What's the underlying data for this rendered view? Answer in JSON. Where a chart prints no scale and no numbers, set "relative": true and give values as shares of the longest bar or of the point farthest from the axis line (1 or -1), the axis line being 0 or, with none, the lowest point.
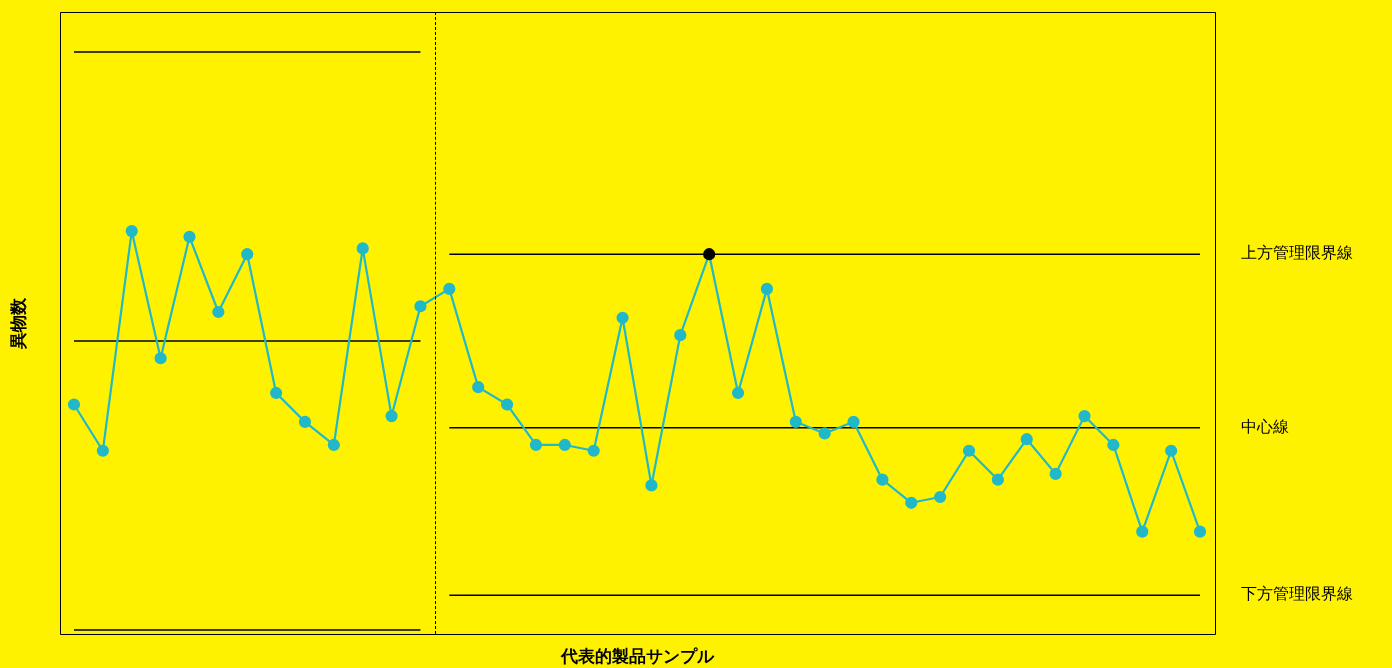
{
  "chart_data": {
    "type": "line",
    "relative": true,
    "xlabel": "代表的製品サンプル",
    "ylabel": "異物数",
    "marker": "circle",
    "line_style": "solid",
    "categories": [
      null,
      null,
      null,
      null,
      null,
      null,
      null,
      null,
      null,
      null,
      null,
      null,
      null,
      null,
      null,
      null,
      null,
      null,
      null,
      null,
      null,
      null,
      null,
      null,
      null,
      null,
      null,
      null,
      null,
      null,
      null,
      null,
      null,
      null,
      null,
      null,
      null,
      null,
      null,
      null
    ],
    "series": [
      {
        "color": "#21b8c9",
        "values": [
          0.39,
          0.31,
          0.69,
          0.47,
          0.68,
          0.55,
          0.65,
          0.41,
          0.36,
          0.32,
          0.66,
          0.37,
          0.56,
          0.59,
          0.42,
          0.39,
          0.32,
          0.32,
          0.31,
          0.54,
          0.25,
          0.51,
          0.65,
          0.41,
          0.59,
          0.36,
          0.34,
          0.36,
          0.26,
          0.22,
          0.23,
          0.31,
          0.26,
          0.33,
          0.27,
          0.37,
          0.32,
          0.17,
          0.31,
          0.17
        ],
        "colors": [
          "#21b8c9",
          "#21b8c9",
          "#21b8c9",
          "#21b8c9",
          "#21b8c9",
          "#21b8c9",
          "#21b8c9",
          "#21b8c9",
          "#21b8c9",
          "#21b8c9",
          "#21b8c9",
          "#21b8c9",
          "#21b8c9",
          "#21b8c9",
          "#21b8c9",
          "#21b8c9",
          "#21b8c9",
          "#21b8c9",
          "#21b8c9",
          "#21b8c9",
          "#21b8c9",
          "#21b8c9",
          "#000000",
          "#21b8c9",
          "#21b8c9",
          "#21b8c9",
          "#21b8c9",
          "#21b8c9",
          "#21b8c9",
          "#21b8c9",
          "#21b8c9",
          "#21b8c9",
          "#21b8c9",
          "#21b8c9",
          "#21b8c9",
          "#21b8c9",
          "#21b8c9",
          "#21b8c9",
          "#21b8c9",
          "#21b8c9"
        ]
      },
      {
        "name": "上方管理限界線",
        "marker": "none",
        "color": "#000000",
        "values": [
          1,
          1,
          1,
          1,
          1,
          1,
          1,
          1,
          1,
          1,
          1,
          1,
          1,
          0.65,
          0.65,
          0.65,
          0.65,
          0.65,
          0.65,
          0.65,
          0.65,
          0.65,
          0.65,
          0.65,
          0.65,
          0.65,
          0.65,
          0.65,
          0.65,
          0.65,
          0.65,
          0.65,
          0.65,
          0.65,
          0.65,
          0.65,
          0.65,
          0.65,
          0.65,
          0.65
        ]
      },
      {
        "name": "中心線",
        "marker": "none",
        "color": "#000000",
        "values": [
          0.5,
          0.5,
          0.5,
          0.5,
          0.5,
          0.5,
          0.5,
          0.5,
          0.5,
          0.5,
          0.5,
          0.5,
          0.5,
          0.35,
          0.35,
          0.35,
          0.35,
          0.35,
          0.35,
          0.35,
          0.35,
          0.35,
          0.35,
          0.35,
          0.35,
          0.35,
          0.35,
          0.35,
          0.35,
          0.35,
          0.35,
          0.35,
          0.35,
          0.35,
          0.35,
          0.35,
          0.35,
          0.35,
          0.35,
          0.35
        ]
      },
      {
        "name": "下方管理限界線",
        "marker": "none",
        "color": "#000000",
        "values": [
          0,
          0,
          0,
          0,
          0,
          0,
          0,
          0,
          0,
          0,
          0,
          0,
          0,
          0.06,
          0.06,
          0.06,
          0.06,
          0.06,
          0.06,
          0.06,
          0.06,
          0.06,
          0.06,
          0.06,
          0.06,
          0.06,
          0.06,
          0.06,
          0.06,
          0.06,
          0.06,
          0.06,
          0.06,
          0.06,
          0.06,
          0.06,
          0.06,
          0.06,
          0.06,
          0.06
        ]
      }
    ]
  }
}
